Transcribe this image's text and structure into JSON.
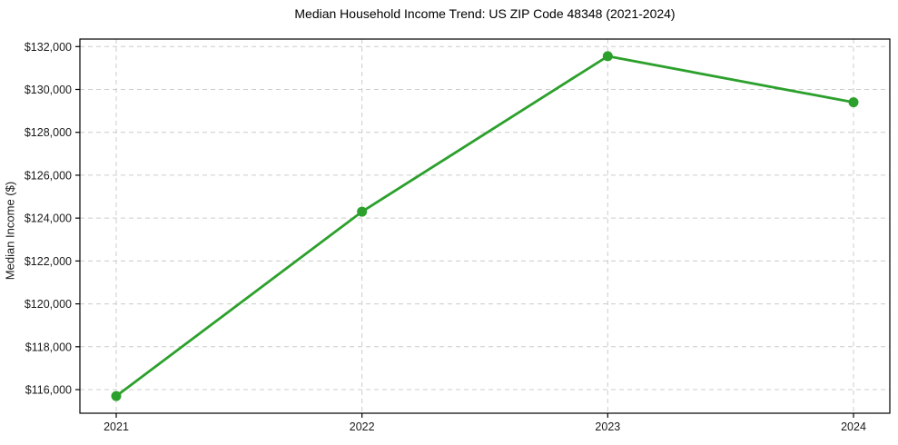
{
  "chart_data": {
    "type": "line",
    "title": "Median Household Income Trend: US ZIP Code 48348 (2021-2024)",
    "xlabel": "",
    "ylabel": "Median Income ($)",
    "x": [
      "2021",
      "2022",
      "2023",
      "2024"
    ],
    "values": [
      115700,
      124300,
      131550,
      129400
    ],
    "ylim": [
      114900,
      132350
    ],
    "yticks": [
      116000,
      118000,
      120000,
      122000,
      124000,
      126000,
      128000,
      130000,
      132000
    ],
    "ytick_labels": [
      "$116,000",
      "$118,000",
      "$120,000",
      "$122,000",
      "$124,000",
      "$126,000",
      "$128,000",
      "$130,000",
      "$132,000"
    ],
    "xtick_labels": [
      "2021",
      "2022",
      "2023",
      "2024"
    ],
    "grid": true,
    "grid_style": "dashed",
    "legend": "none",
    "marker": "circle",
    "colors": {
      "line": "#2ca02c",
      "marker": "#2ca02c",
      "grid": "#cccccc",
      "spine": "#000000",
      "tick_text": "#1a1a1a",
      "background": "#ffffff"
    }
  }
}
